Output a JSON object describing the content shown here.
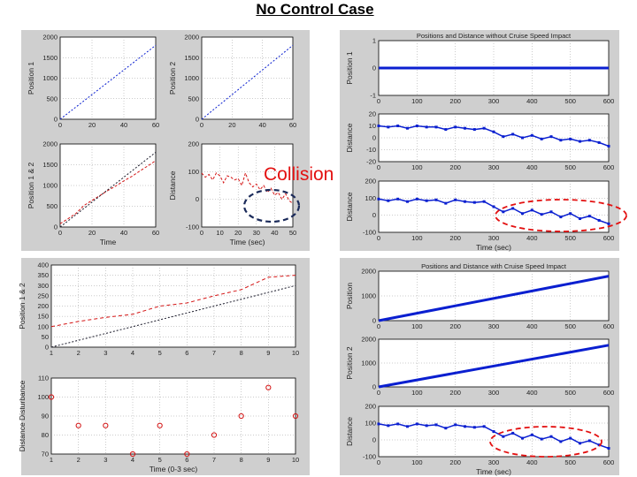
{
  "page": {
    "title": "No Control Case",
    "annotation": "Collision"
  },
  "colors": {
    "blue": "#0a1fd0",
    "red": "#d41414",
    "dark": "#1a1a2a",
    "grid": "#9a9a9a",
    "panel": "#cfcfcf",
    "annot": "#e31010",
    "annot_blue": "#1a2a5a"
  },
  "chart_data": [
    {
      "id": "tl1",
      "type": "line",
      "xlabel": "",
      "ylabel": "Position 1",
      "xlim": [
        0,
        60
      ],
      "ylim": [
        0,
        2000
      ],
      "xticks": [
        "0",
        "20",
        "40",
        "60"
      ],
      "yticks": [
        "0",
        "500",
        "1000",
        "1500",
        "2000"
      ],
      "series": [
        {
          "color": "blue",
          "dash": "2,2",
          "x": [
            0,
            60
          ],
          "y": [
            0,
            1800
          ]
        }
      ]
    },
    {
      "id": "tl2",
      "type": "line",
      "xlabel": "",
      "ylabel": "Position 2",
      "xlim": [
        0,
        60
      ],
      "ylim": [
        0,
        2000
      ],
      "xticks": [
        "0",
        "20",
        "40",
        "60"
      ],
      "yticks": [
        "0",
        "500",
        "1000",
        "1500",
        "2000"
      ],
      "series": [
        {
          "color": "blue",
          "dash": "2,2",
          "x": [
            0,
            60
          ],
          "y": [
            0,
            1800
          ]
        }
      ]
    },
    {
      "id": "tl3",
      "type": "line",
      "xlabel": "Time",
      "ylabel": "Position 1 & 2",
      "xlim": [
        0,
        60
      ],
      "ylim": [
        0,
        2000
      ],
      "xticks": [
        "0",
        "20",
        "40",
        "60"
      ],
      "yticks": [
        "0",
        "500",
        "1000",
        "1500",
        "2000"
      ],
      "series": [
        {
          "color": "red",
          "dash": "3,2",
          "x": [
            0,
            5,
            10,
            15,
            20,
            25,
            30,
            35,
            40,
            45,
            50,
            55,
            60
          ],
          "y": [
            80,
            200,
            330,
            520,
            640,
            760,
            880,
            990,
            1110,
            1220,
            1350,
            1470,
            1600
          ]
        },
        {
          "color": "dark",
          "dash": "2,2",
          "x": [
            0,
            60
          ],
          "y": [
            0,
            1800
          ]
        }
      ]
    },
    {
      "id": "tl4",
      "type": "line",
      "xlabel": "Time (sec)",
      "ylabel": "Distance",
      "xlim": [
        0,
        50
      ],
      "ylim": [
        -100,
        200
      ],
      "xticks": [
        "0",
        "10",
        "20",
        "30",
        "40",
        "50"
      ],
      "yticks": [
        "-100",
        "0",
        "100",
        "200"
      ],
      "series": [
        {
          "color": "red",
          "dash": "3,2",
          "x": [
            0,
            2,
            4,
            6,
            8,
            10,
            12,
            14,
            16,
            18,
            20,
            22,
            24,
            26,
            28,
            30,
            32,
            34,
            36,
            38,
            40,
            42,
            44,
            46,
            48,
            50
          ],
          "y": [
            95,
            80,
            90,
            70,
            95,
            85,
            60,
            85,
            80,
            70,
            75,
            50,
            95,
            60,
            45,
            55,
            35,
            50,
            25,
            40,
            15,
            25,
            0,
            20,
            -5,
            -15
          ]
        }
      ]
    },
    {
      "id": "tr1",
      "type": "line",
      "title": "Positions and Distance without Cruise Speed Impact",
      "xlabel": "",
      "ylabel": "Position 1",
      "xlim": [
        0,
        600
      ],
      "ylim": [
        -1,
        1
      ],
      "xticks": [
        "0",
        "100",
        "200",
        "300",
        "400",
        "500",
        "600"
      ],
      "yticks": [
        "-1",
        "0",
        "1"
      ],
      "series": [
        {
          "color": "blue",
          "dash": "",
          "width": 3,
          "x": [
            0,
            600
          ],
          "y": [
            0,
            0
          ]
        }
      ]
    },
    {
      "id": "tr2",
      "type": "line",
      "xlabel": "",
      "ylabel": "Distance",
      "xlim": [
        0,
        600
      ],
      "ylim": [
        -20,
        20
      ],
      "xticks": [
        "0",
        "100",
        "200",
        "300",
        "400",
        "500",
        "600"
      ],
      "yticks": [
        "-20",
        "-10",
        "0",
        "10",
        "20"
      ],
      "series": [
        {
          "color": "blue",
          "dash": "",
          "width": 1.5,
          "markers": true,
          "x": [
            0,
            25,
            50,
            75,
            100,
            125,
            150,
            175,
            200,
            225,
            250,
            275,
            300,
            325,
            350,
            375,
            400,
            425,
            450,
            475,
            500,
            525,
            550,
            575,
            600
          ],
          "y": [
            10,
            9,
            10,
            8,
            10,
            9,
            9,
            7,
            9,
            8,
            7,
            8,
            5,
            1,
            3,
            0,
            2,
            -1,
            1,
            -2,
            -1,
            -3,
            -2,
            -4,
            -7
          ]
        }
      ]
    },
    {
      "id": "tr3",
      "type": "line",
      "xlabel": "Time (sec)",
      "ylabel": "Distance",
      "xlim": [
        0,
        600
      ],
      "ylim": [
        -100,
        200
      ],
      "xticks": [
        "0",
        "100",
        "200",
        "300",
        "400",
        "500",
        "600"
      ],
      "yticks": [
        "-100",
        "0",
        "100",
        "200"
      ],
      "series": [
        {
          "color": "blue",
          "dash": "",
          "width": 1.5,
          "markers": true,
          "x": [
            0,
            25,
            50,
            75,
            100,
            125,
            150,
            175,
            200,
            225,
            250,
            275,
            300,
            325,
            350,
            375,
            400,
            425,
            450,
            475,
            500,
            525,
            550,
            575,
            600
          ],
          "y": [
            95,
            85,
            95,
            80,
            95,
            85,
            90,
            70,
            90,
            80,
            75,
            80,
            50,
            20,
            40,
            10,
            30,
            5,
            20,
            -10,
            10,
            -20,
            -5,
            -30,
            -50
          ]
        }
      ]
    },
    {
      "id": "bl1",
      "type": "line",
      "xlabel": "",
      "ylabel": "Position 1 & 2",
      "xlim": [
        1,
        10
      ],
      "ylim": [
        0,
        400
      ],
      "xticks": [
        "1",
        "2",
        "3",
        "4",
        "5",
        "6",
        "7",
        "8",
        "9",
        "10"
      ],
      "yticks": [
        "0",
        "50",
        "100",
        "150",
        "200",
        "250",
        "300",
        "350",
        "400"
      ],
      "series": [
        {
          "color": "red",
          "dash": "4,3",
          "x": [
            1,
            2,
            3,
            4,
            5,
            6,
            7,
            8,
            9,
            10
          ],
          "y": [
            100,
            125,
            145,
            160,
            200,
            215,
            250,
            280,
            340,
            350
          ]
        },
        {
          "color": "dark",
          "dash": "2,2",
          "x": [
            1,
            10
          ],
          "y": [
            0,
            300
          ]
        }
      ]
    },
    {
      "id": "bl2",
      "type": "scatter",
      "xlabel": "Time (0-3 sec)",
      "ylabel": "Distance Disturbance",
      "xlim": [
        1,
        10
      ],
      "ylim": [
        70,
        110
      ],
      "xticks": [
        "1",
        "2",
        "3",
        "4",
        "5",
        "6",
        "7",
        "8",
        "9",
        "10"
      ],
      "yticks": [
        "70",
        "80",
        "90",
        "100",
        "110"
      ],
      "series": [
        {
          "color": "red",
          "x": [
            1,
            2,
            3,
            4,
            5,
            6,
            7,
            8,
            9,
            10
          ],
          "y": [
            100,
            85,
            85,
            70,
            85,
            70,
            80,
            90,
            105,
            90
          ]
        }
      ]
    },
    {
      "id": "br1",
      "type": "line",
      "title": "Positions and Distance with Cruise Speed Impact",
      "xlabel": "",
      "ylabel": "Position",
      "xlim": [
        0,
        600
      ],
      "ylim": [
        0,
        2000
      ],
      "xticks": [
        "0",
        "100",
        "200",
        "300",
        "400",
        "500",
        "600"
      ],
      "yticks": [
        "0",
        "1000",
        "2000"
      ],
      "series": [
        {
          "color": "blue",
          "dash": "",
          "width": 3,
          "x": [
            0,
            600
          ],
          "y": [
            0,
            1800
          ]
        }
      ]
    },
    {
      "id": "br2",
      "type": "line",
      "xlabel": "",
      "ylabel": "Position 2",
      "xlim": [
        0,
        600
      ],
      "ylim": [
        0,
        2000
      ],
      "xticks": [
        "0",
        "100",
        "200",
        "300",
        "400",
        "500",
        "600"
      ],
      "yticks": [
        "0",
        "1000",
        "2000"
      ],
      "series": [
        {
          "color": "blue",
          "dash": "",
          "width": 3,
          "x": [
            0,
            600
          ],
          "y": [
            0,
            1750
          ]
        }
      ]
    },
    {
      "id": "br3",
      "type": "line",
      "xlabel": "Time (sec)",
      "ylabel": "Distance",
      "xlim": [
        0,
        600
      ],
      "ylim": [
        -100,
        200
      ],
      "xticks": [
        "0",
        "100",
        "200",
        "300",
        "400",
        "500",
        "600"
      ],
      "yticks": [
        "-100",
        "0",
        "100",
        "200"
      ],
      "series": [
        {
          "color": "blue",
          "dash": "",
          "width": 1.5,
          "markers": true,
          "x": [
            0,
            25,
            50,
            75,
            100,
            125,
            150,
            175,
            200,
            225,
            250,
            275,
            300,
            325,
            350,
            375,
            400,
            425,
            450,
            475,
            500,
            525,
            550,
            575,
            600
          ],
          "y": [
            95,
            85,
            95,
            80,
            95,
            85,
            90,
            70,
            90,
            80,
            75,
            80,
            50,
            20,
            40,
            10,
            30,
            5,
            20,
            -10,
            10,
            -20,
            -5,
            -30,
            -50
          ]
        }
      ]
    }
  ]
}
